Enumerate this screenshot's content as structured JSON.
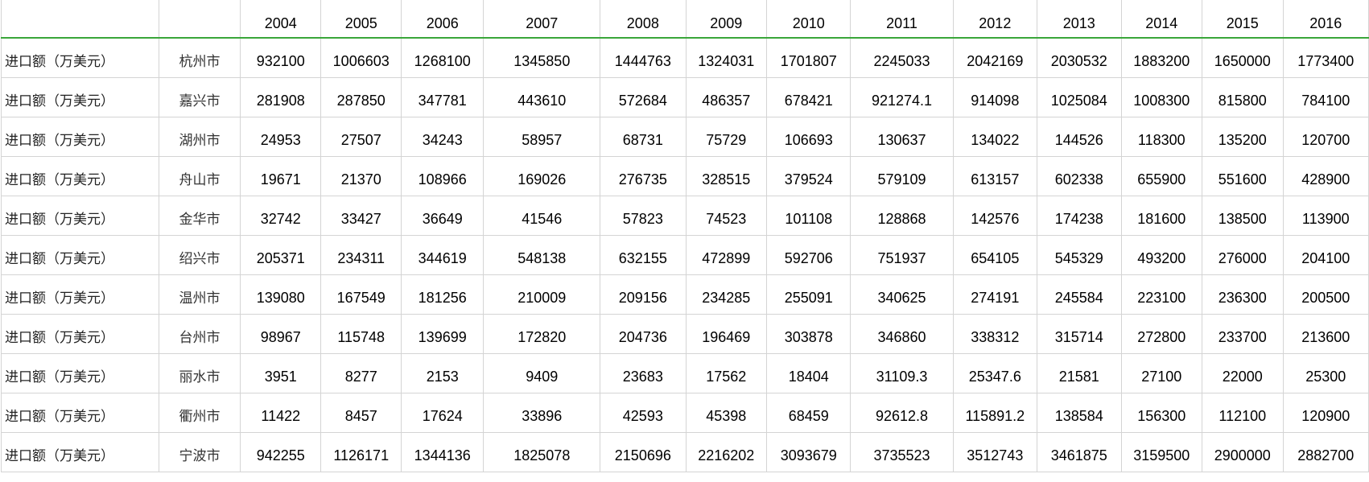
{
  "header": {
    "label": "",
    "city": "",
    "years": [
      "2004",
      "2005",
      "2006",
      "2007",
      "2008",
      "2009",
      "2010",
      "2011",
      "2012",
      "2013",
      "2014",
      "2015",
      "2016"
    ]
  },
  "rows": [
    {
      "label": "进口额（万美元）",
      "city": "杭州市",
      "values": [
        "932100",
        "1006603",
        "1268100",
        "1345850",
        "1444763",
        "1324031",
        "1701807",
        "2245033",
        "2042169",
        "2030532",
        "1883200",
        "1650000",
        "1773400"
      ]
    },
    {
      "label": "进口额（万美元）",
      "city": "嘉兴市",
      "values": [
        "281908",
        "287850",
        "347781",
        "443610",
        "572684",
        "486357",
        "678421",
        "921274.1",
        "914098",
        "1025084",
        "1008300",
        "815800",
        "784100"
      ]
    },
    {
      "label": "进口额（万美元）",
      "city": "湖州市",
      "values": [
        "24953",
        "27507",
        "34243",
        "58957",
        "68731",
        "75729",
        "106693",
        "130637",
        "134022",
        "144526",
        "118300",
        "135200",
        "120700"
      ]
    },
    {
      "label": "进口额（万美元）",
      "city": "舟山市",
      "values": [
        "19671",
        "21370",
        "108966",
        "169026",
        "276735",
        "328515",
        "379524",
        "579109",
        "613157",
        "602338",
        "655900",
        "551600",
        "428900"
      ]
    },
    {
      "label": "进口额（万美元）",
      "city": "金华市",
      "values": [
        "32742",
        "33427",
        "36649",
        "41546",
        "57823",
        "74523",
        "101108",
        "128868",
        "142576",
        "174238",
        "181600",
        "138500",
        "113900"
      ]
    },
    {
      "label": "进口额（万美元）",
      "city": "绍兴市",
      "values": [
        "205371",
        "234311",
        "344619",
        "548138",
        "632155",
        "472899",
        "592706",
        "751937",
        "654105",
        "545329",
        "493200",
        "276000",
        "204100"
      ]
    },
    {
      "label": "进口额（万美元）",
      "city": "温州市",
      "values": [
        "139080",
        "167549",
        "181256",
        "210009",
        "209156",
        "234285",
        "255091",
        "340625",
        "274191",
        "245584",
        "223100",
        "236300",
        "200500"
      ]
    },
    {
      "label": "进口额（万美元）",
      "city": "台州市",
      "values": [
        "98967",
        "115748",
        "139699",
        "172820",
        "204736",
        "196469",
        "303878",
        "346860",
        "338312",
        "315714",
        "272800",
        "233700",
        "213600"
      ]
    },
    {
      "label": "进口额（万美元）",
      "city": "丽水市",
      "values": [
        "3951",
        "8277",
        "2153",
        "9409",
        "23683",
        "17562",
        "18404",
        "31109.3",
        "25347.6",
        "21581",
        "27100",
        "22000",
        "25300"
      ]
    },
    {
      "label": "进口额（万美元）",
      "city": "衢州市",
      "values": [
        "11422",
        "8457",
        "17624",
        "33896",
        "42593",
        "45398",
        "68459",
        "92612.8",
        "115891.2",
        "138584",
        "156300",
        "112100",
        "120900"
      ]
    },
    {
      "label": "进口额（万美元）",
      "city": "宁波市",
      "values": [
        "942255",
        "1126171",
        "1344136",
        "1825078",
        "2150696",
        "2216202",
        "3093679",
        "3735523",
        "3512743",
        "3461875",
        "3159500",
        "2900000",
        "2882700"
      ]
    }
  ],
  "colors": {
    "grid": "#d4d4d4",
    "header_rule": "#3aa63a"
  }
}
